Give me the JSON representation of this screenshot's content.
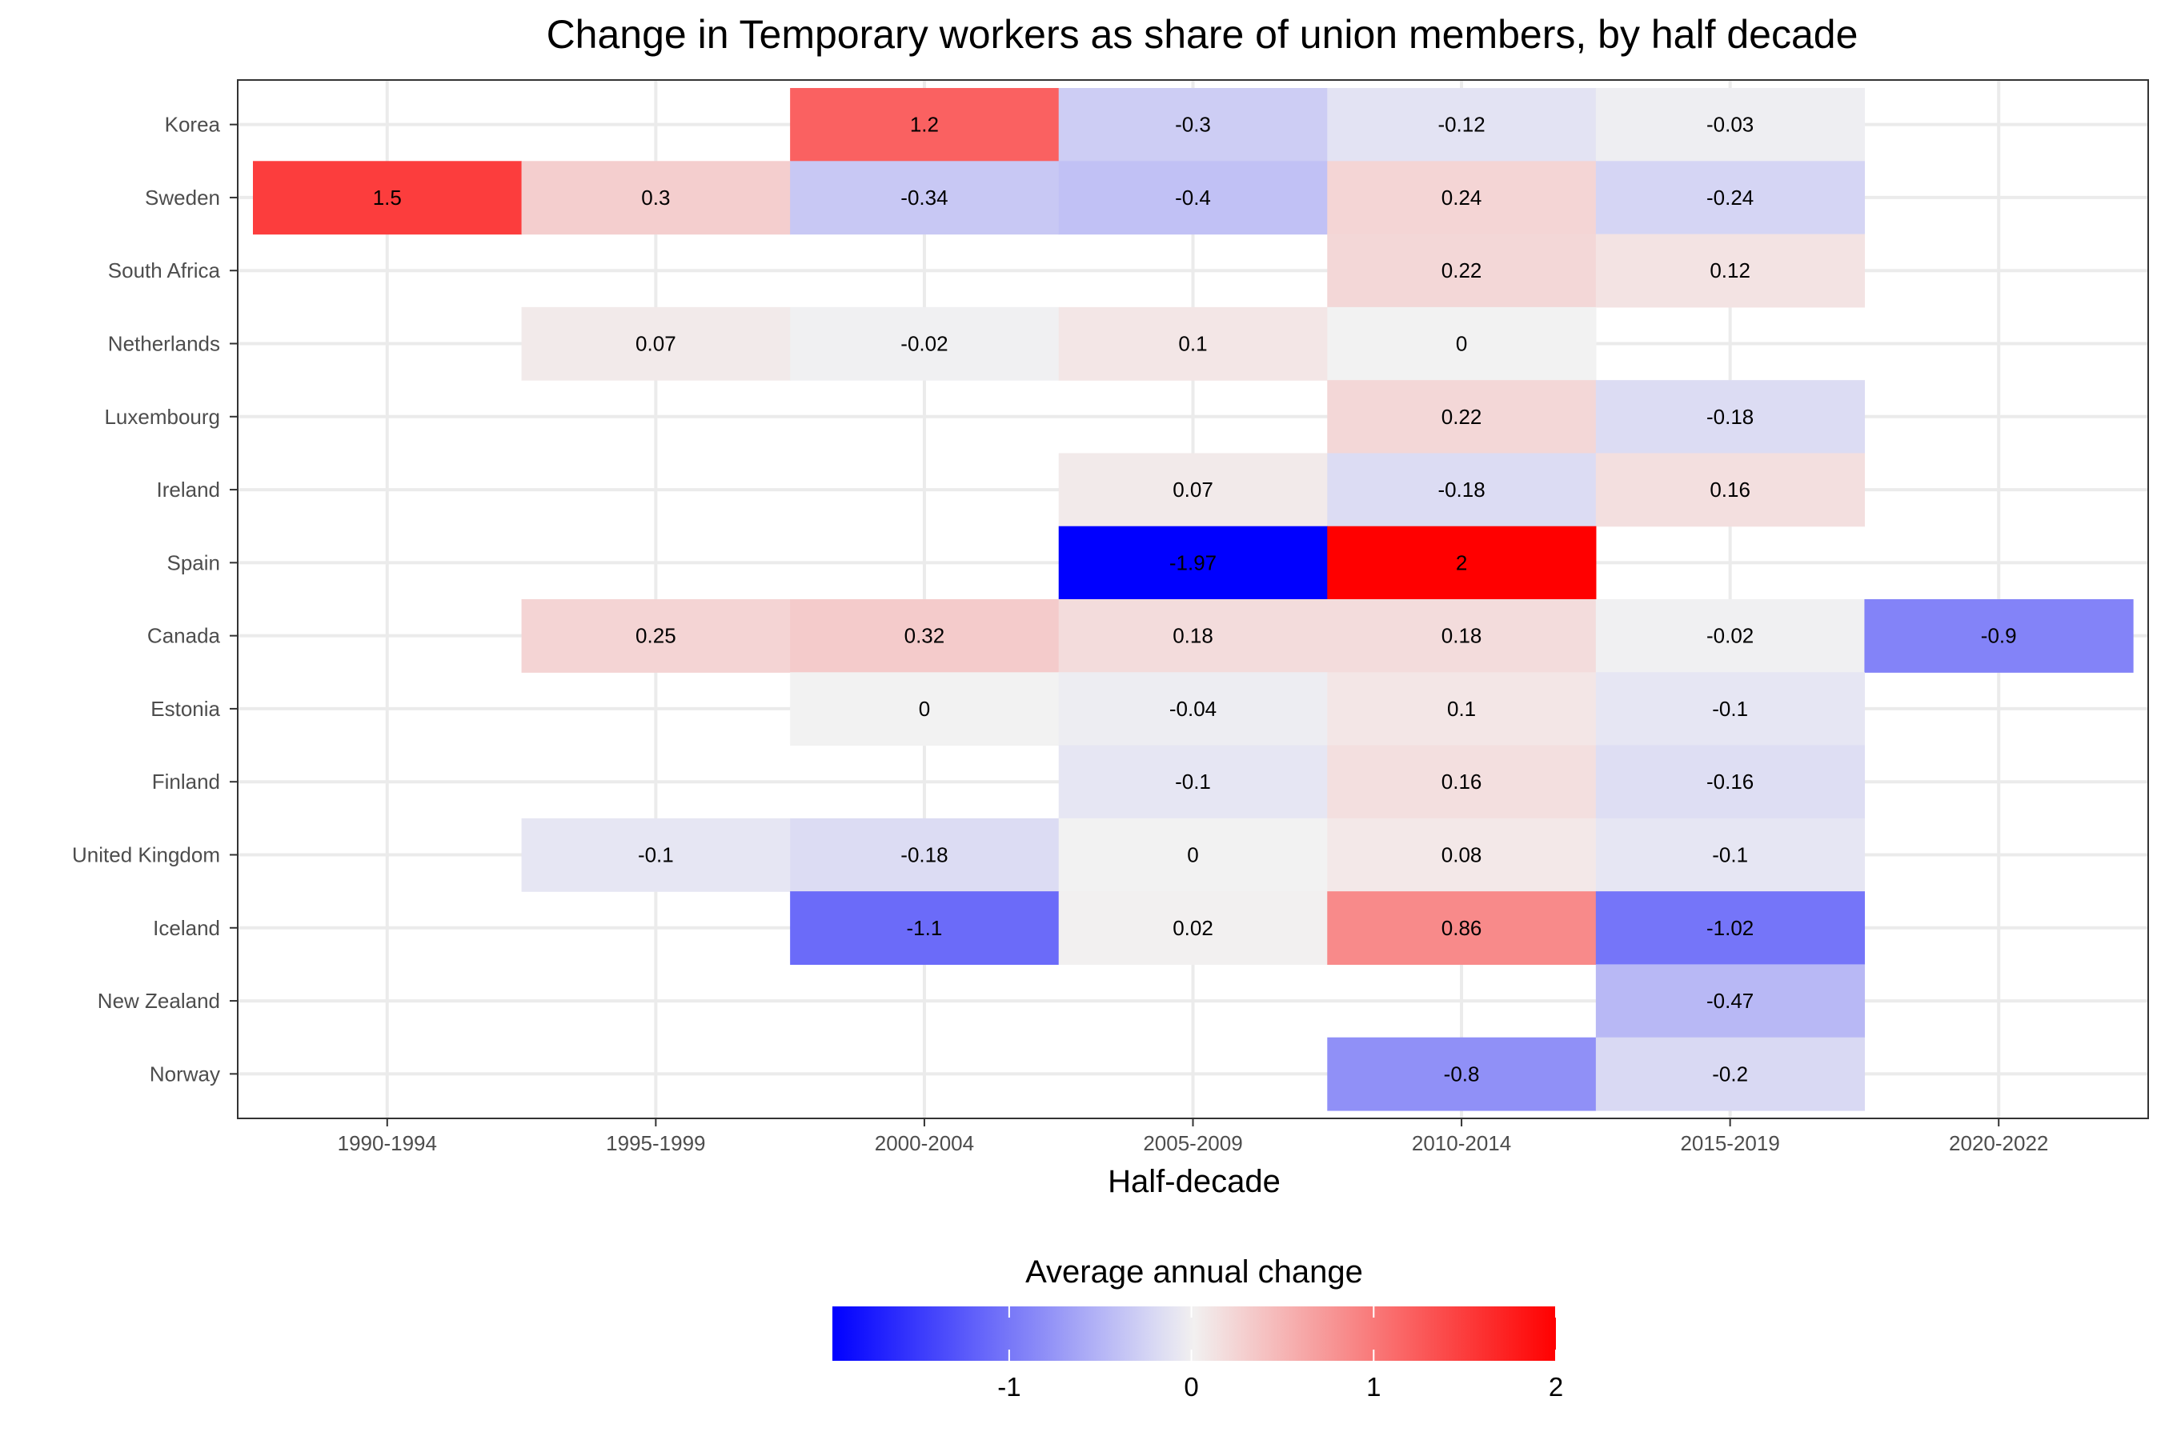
{
  "chart_data": {
    "type": "heatmap",
    "title": "Change in Temporary workers as share of union members, by half decade",
    "xlabel": "Half-decade",
    "ylabel": "",
    "x_categories": [
      "1990-1994",
      "1995-1999",
      "2000-2004",
      "2005-2009",
      "2010-2014",
      "2015-2019",
      "2020-2022"
    ],
    "y_categories": [
      "Korea",
      "Sweden",
      "South Africa",
      "Netherlands",
      "Luxembourg",
      "Ireland",
      "Spain",
      "Canada",
      "Estonia",
      "Finland",
      "United Kingdom",
      "Iceland",
      "New Zealand",
      "Norway"
    ],
    "cells": [
      {
        "country": "Korea",
        "period": "2000-2004",
        "value": 1.2,
        "label": "1.2"
      },
      {
        "country": "Korea",
        "period": "2005-2009",
        "value": -0.3,
        "label": "-0.3"
      },
      {
        "country": "Korea",
        "period": "2010-2014",
        "value": -0.12,
        "label": "-0.12"
      },
      {
        "country": "Korea",
        "period": "2015-2019",
        "value": -0.03,
        "label": "-0.03"
      },
      {
        "country": "Sweden",
        "period": "1990-1994",
        "value": 1.5,
        "label": "1.5"
      },
      {
        "country": "Sweden",
        "period": "1995-1999",
        "value": 0.3,
        "label": "0.3"
      },
      {
        "country": "Sweden",
        "period": "2000-2004",
        "value": -0.34,
        "label": "-0.34"
      },
      {
        "country": "Sweden",
        "period": "2005-2009",
        "value": -0.4,
        "label": "-0.4"
      },
      {
        "country": "Sweden",
        "period": "2010-2014",
        "value": 0.24,
        "label": "0.24"
      },
      {
        "country": "Sweden",
        "period": "2015-2019",
        "value": -0.24,
        "label": "-0.24"
      },
      {
        "country": "South Africa",
        "period": "2010-2014",
        "value": 0.22,
        "label": "0.22"
      },
      {
        "country": "South Africa",
        "period": "2015-2019",
        "value": 0.12,
        "label": "0.12"
      },
      {
        "country": "Netherlands",
        "period": "1995-1999",
        "value": 0.07,
        "label": "0.07"
      },
      {
        "country": "Netherlands",
        "period": "2000-2004",
        "value": -0.02,
        "label": "-0.02"
      },
      {
        "country": "Netherlands",
        "period": "2005-2009",
        "value": 0.1,
        "label": "0.1"
      },
      {
        "country": "Netherlands",
        "period": "2010-2014",
        "value": 0,
        "label": "0"
      },
      {
        "country": "Luxembourg",
        "period": "2010-2014",
        "value": 0.22,
        "label": "0.22"
      },
      {
        "country": "Luxembourg",
        "period": "2015-2019",
        "value": -0.18,
        "label": "-0.18"
      },
      {
        "country": "Ireland",
        "period": "2005-2009",
        "value": 0.07,
        "label": "0.07"
      },
      {
        "country": "Ireland",
        "period": "2010-2014",
        "value": -0.18,
        "label": "-0.18"
      },
      {
        "country": "Ireland",
        "period": "2015-2019",
        "value": 0.16,
        "label": "0.16"
      },
      {
        "country": "Spain",
        "period": "2005-2009",
        "value": -1.97,
        "label": "-1.97"
      },
      {
        "country": "Spain",
        "period": "2010-2014",
        "value": 2,
        "label": "2"
      },
      {
        "country": "Canada",
        "period": "1995-1999",
        "value": 0.25,
        "label": "0.25"
      },
      {
        "country": "Canada",
        "period": "2000-2004",
        "value": 0.32,
        "label": "0.32"
      },
      {
        "country": "Canada",
        "period": "2005-2009",
        "value": 0.18,
        "label": "0.18"
      },
      {
        "country": "Canada",
        "period": "2010-2014",
        "value": 0.18,
        "label": "0.18"
      },
      {
        "country": "Canada",
        "period": "2015-2019",
        "value": -0.02,
        "label": "-0.02"
      },
      {
        "country": "Canada",
        "period": "2020-2022",
        "value": -0.9,
        "label": "-0.9"
      },
      {
        "country": "Estonia",
        "period": "2000-2004",
        "value": 0,
        "label": "0"
      },
      {
        "country": "Estonia",
        "period": "2005-2009",
        "value": -0.04,
        "label": "-0.04"
      },
      {
        "country": "Estonia",
        "period": "2010-2014",
        "value": 0.1,
        "label": "0.1"
      },
      {
        "country": "Estonia",
        "period": "2015-2019",
        "value": -0.1,
        "label": "-0.1"
      },
      {
        "country": "Finland",
        "period": "2005-2009",
        "value": -0.1,
        "label": "-0.1"
      },
      {
        "country": "Finland",
        "period": "2010-2014",
        "value": 0.16,
        "label": "0.16"
      },
      {
        "country": "Finland",
        "period": "2015-2019",
        "value": -0.16,
        "label": "-0.16"
      },
      {
        "country": "United Kingdom",
        "period": "1995-1999",
        "value": -0.1,
        "label": "-0.1"
      },
      {
        "country": "United Kingdom",
        "period": "2000-2004",
        "value": -0.18,
        "label": "-0.18"
      },
      {
        "country": "United Kingdom",
        "period": "2005-2009",
        "value": 0,
        "label": "0"
      },
      {
        "country": "United Kingdom",
        "period": "2010-2014",
        "value": 0.08,
        "label": "0.08"
      },
      {
        "country": "United Kingdom",
        "period": "2015-2019",
        "value": -0.1,
        "label": "-0.1"
      },
      {
        "country": "Iceland",
        "period": "2000-2004",
        "value": -1.1,
        "label": "-1.1"
      },
      {
        "country": "Iceland",
        "period": "2005-2009",
        "value": 0.02,
        "label": "0.02"
      },
      {
        "country": "Iceland",
        "period": "2010-2014",
        "value": 0.86,
        "label": "0.86"
      },
      {
        "country": "Iceland",
        "period": "2015-2019",
        "value": -1.02,
        "label": "-1.02"
      },
      {
        "country": "New Zealand",
        "period": "2015-2019",
        "value": -0.47,
        "label": "-0.47"
      },
      {
        "country": "Norway",
        "period": "2010-2014",
        "value": -0.8,
        "label": "-0.8"
      },
      {
        "country": "Norway",
        "period": "2015-2019",
        "value": -0.2,
        "label": "-0.2"
      }
    ],
    "color_scale": {
      "type": "diverging",
      "low": "#0000ff",
      "mid": "#f2f2f2",
      "high": "#ff0000",
      "midpoint": 0,
      "limits": [
        -1.97,
        2
      ]
    },
    "legend": {
      "title": "Average annual change",
      "position": "bottom",
      "ticks": [
        -1,
        0,
        1,
        2
      ]
    },
    "grid": true
  },
  "colors": {
    "grid": "#ebebeb",
    "panel_border": "#333333",
    "tick_text": "#4d4d4d",
    "tick_mark": "#333333"
  }
}
